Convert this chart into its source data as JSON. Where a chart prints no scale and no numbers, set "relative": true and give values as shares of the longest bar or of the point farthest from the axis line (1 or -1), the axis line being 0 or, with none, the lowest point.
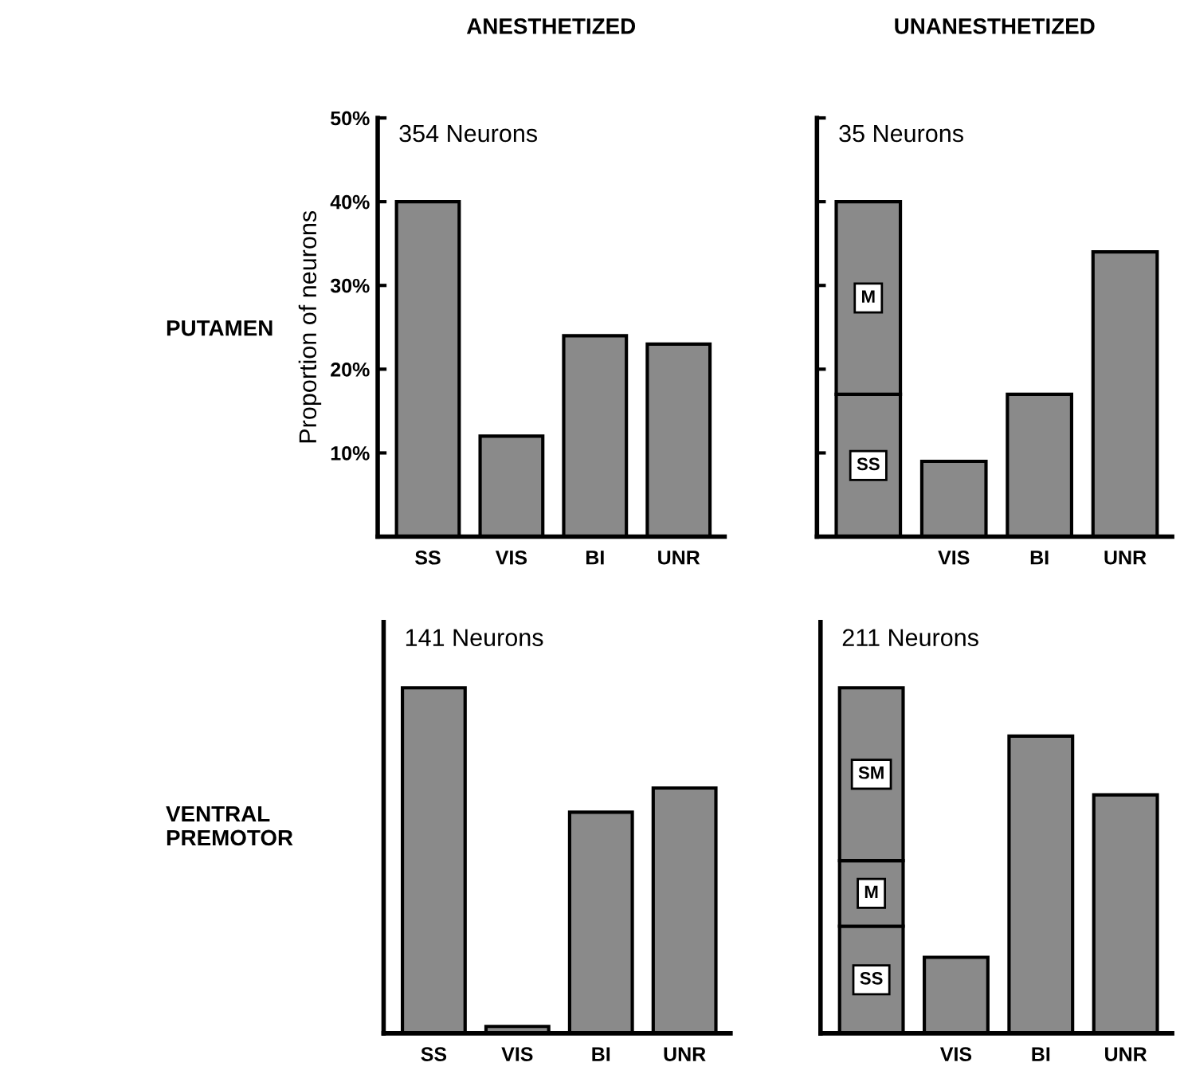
{
  "chart_data": [
    {
      "type": "bar",
      "title": "ANESTHETIZED",
      "subtitle": "354 Neurons",
      "ylabel": "Proportion of neurons",
      "annotations": [
        "PUTAMEN"
      ],
      "categories": [
        "SS",
        "VIS",
        "BI",
        "UNR"
      ],
      "series": [
        {
          "color": "#8a8a8a",
          "values": [
            40,
            12,
            24,
            23
          ]
        }
      ],
      "ylim": [
        0,
        50
      ],
      "yticks": [
        {
          "value": 10,
          "label": "10%"
        },
        {
          "value": 20,
          "label": "20%"
        },
        {
          "value": 30,
          "label": "30%"
        },
        {
          "value": 40,
          "label": "40%"
        },
        {
          "value": 50,
          "label": "50%"
        }
      ],
      "legend": false,
      "grid": false
    },
    {
      "type": "bar",
      "title": "UNANESTHETIZED",
      "subtitle": "35 Neurons",
      "categories": [
        null,
        "VIS",
        "BI",
        "UNR"
      ],
      "stacked": true,
      "series": [
        {
          "name": "SS",
          "color": "#8a8a8a",
          "values": [
            17,
            null,
            null,
            null
          ]
        },
        {
          "name": "M",
          "color": "#8a8a8a",
          "values": [
            23,
            null,
            null,
            null
          ]
        },
        {
          "color": "#8a8a8a",
          "values": [
            null,
            9,
            17,
            34
          ]
        }
      ],
      "ylim": [
        0,
        50
      ],
      "yticks": [
        {
          "value": 10,
          "label": null
        },
        {
          "value": 20,
          "label": null
        },
        {
          "value": 30,
          "label": null
        },
        {
          "value": 40,
          "label": null
        },
        {
          "value": 50,
          "label": null
        }
      ],
      "tick_labels": "x",
      "legend": false,
      "grid": false
    },
    {
      "type": "bar",
      "subtitle": "141 Neurons",
      "annotations": [
        "VENTRAL\nPREMOTOR"
      ],
      "categories": [
        "SS",
        "VIS",
        "BI",
        "UNR"
      ],
      "series": [
        {
          "color": "#8a8a8a",
          "values": [
            1,
            0.02,
            0.64,
            0.71
          ]
        }
      ],
      "relative": true,
      "legend": false,
      "grid": false
    },
    {
      "type": "bar",
      "subtitle": "211 Neurons",
      "categories": [
        null,
        "VIS",
        "BI",
        "UNR"
      ],
      "stacked": true,
      "series": [
        {
          "name": "SS",
          "color": "#8a8a8a",
          "values": [
            0.31,
            null,
            null,
            null
          ]
        },
        {
          "name": "M",
          "color": "#8a8a8a",
          "values": [
            0.19,
            null,
            null,
            null
          ]
        },
        {
          "name": "SM",
          "color": "#8a8a8a",
          "values": [
            0.5,
            null,
            null,
            null
          ]
        },
        {
          "color": "#8a8a8a",
          "values": [
            null,
            0.22,
            0.86,
            0.69
          ]
        }
      ],
      "relative": true,
      "legend": false,
      "grid": false
    }
  ]
}
